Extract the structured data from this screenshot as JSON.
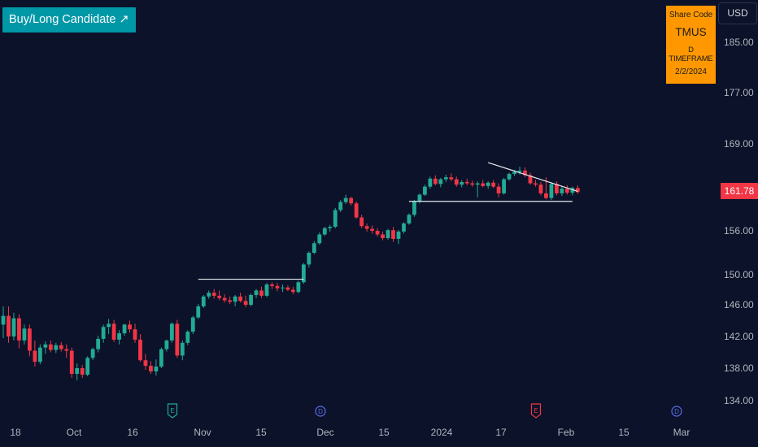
{
  "header": {
    "signal_label": "Buy/Long Candidate ↗",
    "currency": "USD"
  },
  "info_box": {
    "label": "Share Code",
    "ticker": "TMUS",
    "timeframe": "D TIMEFRAME",
    "date": "2/2/2024"
  },
  "last_price_label": "161.78",
  "colors": {
    "background": "#0b1229",
    "up": "#22ab94",
    "down": "#f23645",
    "accent_box": "#ff9800",
    "tag_box": "#0097a7",
    "last_price": "#f23645",
    "earnings_event": "#22ab94",
    "dividend_event": "#5b6be8",
    "earnings_event_2": "#f23645"
  },
  "chart_data": {
    "type": "candlestick",
    "yticks": [
      "185.00",
      "177.00",
      "169.00",
      "161.78",
      "156.00",
      "150.00",
      "146.00",
      "142.00",
      "138.00",
      "134.00"
    ],
    "xticks": [
      "18",
      "Oct",
      "16",
      "Nov",
      "15",
      "Dec",
      "15",
      "2024",
      "17",
      "Feb",
      "15",
      "Mar"
    ],
    "last_price": 161.78,
    "events": [
      {
        "letter": "E",
        "kind": "earnings",
        "color": "#22ab94"
      },
      {
        "letter": "D",
        "kind": "dividend",
        "color": "#5b6be8"
      },
      {
        "letter": "E",
        "kind": "earnings",
        "color": "#f23645"
      },
      {
        "letter": "D",
        "kind": "dividend",
        "color": "#5b6be8"
      }
    ],
    "candles": [
      {
        "o": 143.5,
        "h": 145.8,
        "l": 141.8,
        "c": 144.6
      },
      {
        "o": 144.6,
        "h": 145.8,
        "l": 141.2,
        "c": 142.0
      },
      {
        "o": 142.0,
        "h": 145.0,
        "l": 141.5,
        "c": 144.3
      },
      {
        "o": 144.3,
        "h": 144.8,
        "l": 140.5,
        "c": 141.5
      },
      {
        "o": 141.5,
        "h": 143.5,
        "l": 141.0,
        "c": 143.0
      },
      {
        "o": 143.0,
        "h": 143.5,
        "l": 139.5,
        "c": 140.2
      },
      {
        "o": 140.2,
        "h": 141.5,
        "l": 138.2,
        "c": 138.8
      },
      {
        "o": 138.8,
        "h": 141.0,
        "l": 138.5,
        "c": 140.6
      },
      {
        "o": 140.6,
        "h": 141.4,
        "l": 139.8,
        "c": 141.0
      },
      {
        "o": 141.0,
        "h": 141.5,
        "l": 140.0,
        "c": 140.3
      },
      {
        "o": 140.3,
        "h": 141.2,
        "l": 139.9,
        "c": 140.9
      },
      {
        "o": 140.9,
        "h": 141.3,
        "l": 140.1,
        "c": 140.4
      },
      {
        "o": 140.4,
        "h": 141.0,
        "l": 139.3,
        "c": 140.2
      },
      {
        "o": 140.2,
        "h": 140.6,
        "l": 136.8,
        "c": 137.3
      },
      {
        "o": 137.3,
        "h": 138.6,
        "l": 136.5,
        "c": 138.0
      },
      {
        "o": 138.0,
        "h": 138.4,
        "l": 136.8,
        "c": 137.2
      },
      {
        "o": 137.2,
        "h": 139.5,
        "l": 137.0,
        "c": 139.3
      },
      {
        "o": 139.3,
        "h": 140.6,
        "l": 139.0,
        "c": 140.4
      },
      {
        "o": 140.4,
        "h": 142.1,
        "l": 140.0,
        "c": 141.7
      },
      {
        "o": 141.7,
        "h": 143.5,
        "l": 141.2,
        "c": 143.2
      },
      {
        "o": 143.2,
        "h": 144.2,
        "l": 142.3,
        "c": 143.6
      },
      {
        "o": 143.6,
        "h": 144.1,
        "l": 141.3,
        "c": 141.6
      },
      {
        "o": 141.6,
        "h": 142.8,
        "l": 141.0,
        "c": 142.4
      },
      {
        "o": 142.4,
        "h": 143.6,
        "l": 142.1,
        "c": 143.5
      },
      {
        "o": 143.5,
        "h": 144.0,
        "l": 142.5,
        "c": 142.9
      },
      {
        "o": 142.9,
        "h": 143.6,
        "l": 141.2,
        "c": 141.6
      },
      {
        "o": 141.6,
        "h": 142.3,
        "l": 138.8,
        "c": 139.0
      },
      {
        "o": 139.0,
        "h": 139.8,
        "l": 137.8,
        "c": 138.3
      },
      {
        "o": 138.3,
        "h": 138.9,
        "l": 137.3,
        "c": 137.6
      },
      {
        "o": 137.6,
        "h": 139.1,
        "l": 137.1,
        "c": 138.2
      },
      {
        "o": 138.2,
        "h": 140.6,
        "l": 138.0,
        "c": 140.4
      },
      {
        "o": 140.4,
        "h": 141.6,
        "l": 140.1,
        "c": 141.5
      },
      {
        "o": 141.5,
        "h": 143.8,
        "l": 141.2,
        "c": 143.6
      },
      {
        "o": 143.6,
        "h": 144.1,
        "l": 139.3,
        "c": 139.6
      },
      {
        "o": 139.6,
        "h": 141.5,
        "l": 139.0,
        "c": 141.2
      },
      {
        "o": 141.2,
        "h": 142.8,
        "l": 140.9,
        "c": 142.6
      },
      {
        "o": 142.6,
        "h": 144.6,
        "l": 142.3,
        "c": 144.4
      },
      {
        "o": 144.4,
        "h": 146.1,
        "l": 144.2,
        "c": 145.8
      },
      {
        "o": 145.8,
        "h": 147.3,
        "l": 145.6,
        "c": 147.1
      },
      {
        "o": 147.1,
        "h": 147.9,
        "l": 146.8,
        "c": 147.6
      },
      {
        "o": 147.6,
        "h": 148.1,
        "l": 146.8,
        "c": 147.2
      },
      {
        "o": 147.2,
        "h": 147.9,
        "l": 146.6,
        "c": 146.9
      },
      {
        "o": 146.9,
        "h": 147.4,
        "l": 146.3,
        "c": 146.6
      },
      {
        "o": 146.6,
        "h": 147.1,
        "l": 146.1,
        "c": 146.4
      },
      {
        "o": 146.4,
        "h": 147.3,
        "l": 145.8,
        "c": 147.1
      },
      {
        "o": 147.1,
        "h": 147.6,
        "l": 146.3,
        "c": 146.5
      },
      {
        "o": 146.5,
        "h": 147.2,
        "l": 145.7,
        "c": 146.0
      },
      {
        "o": 146.0,
        "h": 147.5,
        "l": 145.8,
        "c": 147.3
      },
      {
        "o": 147.3,
        "h": 148.1,
        "l": 146.9,
        "c": 147.9
      },
      {
        "o": 147.9,
        "h": 148.4,
        "l": 146.9,
        "c": 147.2
      },
      {
        "o": 147.2,
        "h": 148.9,
        "l": 147.0,
        "c": 148.7
      },
      {
        "o": 148.7,
        "h": 149.0,
        "l": 148.1,
        "c": 148.5
      },
      {
        "o": 148.5,
        "h": 148.9,
        "l": 147.8,
        "c": 148.2
      },
      {
        "o": 148.2,
        "h": 148.7,
        "l": 147.7,
        "c": 148.3
      },
      {
        "o": 148.3,
        "h": 148.6,
        "l": 147.8,
        "c": 148.0
      },
      {
        "o": 148.0,
        "h": 148.4,
        "l": 147.4,
        "c": 147.7
      },
      {
        "o": 147.7,
        "h": 149.2,
        "l": 147.5,
        "c": 149.0
      },
      {
        "o": 149.0,
        "h": 151.6,
        "l": 148.8,
        "c": 151.4
      },
      {
        "o": 151.4,
        "h": 153.2,
        "l": 151.0,
        "c": 153.0
      },
      {
        "o": 153.0,
        "h": 154.6,
        "l": 152.8,
        "c": 154.3
      },
      {
        "o": 154.3,
        "h": 155.8,
        "l": 154.1,
        "c": 155.5
      },
      {
        "o": 155.5,
        "h": 156.6,
        "l": 155.3,
        "c": 156.4
      },
      {
        "o": 156.4,
        "h": 156.9,
        "l": 155.9,
        "c": 156.6
      },
      {
        "o": 156.6,
        "h": 159.4,
        "l": 156.4,
        "c": 159.1
      },
      {
        "o": 159.1,
        "h": 160.6,
        "l": 158.8,
        "c": 160.3
      },
      {
        "o": 160.3,
        "h": 161.4,
        "l": 160.0,
        "c": 160.9
      },
      {
        "o": 160.9,
        "h": 161.1,
        "l": 159.8,
        "c": 160.1
      },
      {
        "o": 160.1,
        "h": 160.4,
        "l": 157.8,
        "c": 158.0
      },
      {
        "o": 158.0,
        "h": 158.4,
        "l": 156.4,
        "c": 156.7
      },
      {
        "o": 156.7,
        "h": 157.1,
        "l": 155.9,
        "c": 156.3
      },
      {
        "o": 156.3,
        "h": 156.8,
        "l": 155.6,
        "c": 156.0
      },
      {
        "o": 156.0,
        "h": 156.4,
        "l": 155.2,
        "c": 155.5
      },
      {
        "o": 155.5,
        "h": 155.9,
        "l": 154.7,
        "c": 155.0
      },
      {
        "o": 155.0,
        "h": 156.3,
        "l": 154.8,
        "c": 156.1
      },
      {
        "o": 156.1,
        "h": 156.6,
        "l": 154.5,
        "c": 154.9
      },
      {
        "o": 154.9,
        "h": 156.1,
        "l": 154.2,
        "c": 155.9
      },
      {
        "o": 155.9,
        "h": 157.3,
        "l": 155.6,
        "c": 157.1
      },
      {
        "o": 157.1,
        "h": 158.6,
        "l": 156.9,
        "c": 158.4
      },
      {
        "o": 158.4,
        "h": 160.6,
        "l": 158.1,
        "c": 160.4
      },
      {
        "o": 160.4,
        "h": 161.6,
        "l": 160.1,
        "c": 161.4
      },
      {
        "o": 161.4,
        "h": 162.9,
        "l": 161.2,
        "c": 162.6
      },
      {
        "o": 162.6,
        "h": 164.1,
        "l": 162.3,
        "c": 163.8
      },
      {
        "o": 163.8,
        "h": 164.3,
        "l": 162.8,
        "c": 163.0
      },
      {
        "o": 163.0,
        "h": 163.9,
        "l": 162.5,
        "c": 163.7
      },
      {
        "o": 163.7,
        "h": 164.4,
        "l": 163.3,
        "c": 164.0
      },
      {
        "o": 164.0,
        "h": 164.6,
        "l": 163.4,
        "c": 163.7
      },
      {
        "o": 163.7,
        "h": 164.1,
        "l": 162.6,
        "c": 162.9
      },
      {
        "o": 162.9,
        "h": 163.6,
        "l": 162.5,
        "c": 163.3
      },
      {
        "o": 163.3,
        "h": 163.8,
        "l": 162.8,
        "c": 163.1
      },
      {
        "o": 163.1,
        "h": 163.5,
        "l": 162.6,
        "c": 162.9
      },
      {
        "o": 162.9,
        "h": 163.4,
        "l": 161.0,
        "c": 163.1
      },
      {
        "o": 163.1,
        "h": 163.6,
        "l": 162.5,
        "c": 162.7
      },
      {
        "o": 162.7,
        "h": 163.4,
        "l": 162.3,
        "c": 163.2
      },
      {
        "o": 163.2,
        "h": 163.6,
        "l": 162.4,
        "c": 162.6
      },
      {
        "o": 162.6,
        "h": 163.1,
        "l": 161.0,
        "c": 161.6
      },
      {
        "o": 161.6,
        "h": 163.9,
        "l": 161.4,
        "c": 163.7
      },
      {
        "o": 163.7,
        "h": 164.7,
        "l": 163.5,
        "c": 164.5
      },
      {
        "o": 164.5,
        "h": 165.1,
        "l": 164.2,
        "c": 164.8
      },
      {
        "o": 164.8,
        "h": 165.6,
        "l": 164.4,
        "c": 165.0
      },
      {
        "o": 165.0,
        "h": 165.5,
        "l": 164.0,
        "c": 164.3
      },
      {
        "o": 164.3,
        "h": 164.7,
        "l": 162.9,
        "c": 163.1
      },
      {
        "o": 163.1,
        "h": 163.6,
        "l": 162.6,
        "c": 162.9
      },
      {
        "o": 162.9,
        "h": 163.3,
        "l": 161.3,
        "c": 161.6
      },
      {
        "o": 161.6,
        "h": 164.0,
        "l": 160.7,
        "c": 160.9
      },
      {
        "o": 160.9,
        "h": 163.3,
        "l": 160.6,
        "c": 163.0
      },
      {
        "o": 163.0,
        "h": 163.4,
        "l": 161.3,
        "c": 161.6
      },
      {
        "o": 161.6,
        "h": 162.6,
        "l": 161.2,
        "c": 162.3
      },
      {
        "o": 162.3,
        "h": 162.8,
        "l": 161.4,
        "c": 161.7
      },
      {
        "o": 161.7,
        "h": 162.6,
        "l": 161.3,
        "c": 162.4
      },
      {
        "o": 162.4,
        "h": 162.8,
        "l": 161.5,
        "c": 161.78
      }
    ],
    "trendlines": [
      {
        "name": "resistance-nov",
        "from": {
          "bar": 37,
          "price": 149.4
        },
        "to": {
          "bar": 57,
          "price": 149.4
        }
      },
      {
        "name": "support-jan",
        "from": {
          "bar": 77,
          "price": 160.4
        },
        "to": {
          "bar": 108,
          "price": 160.4
        }
      },
      {
        "name": "upper-descending",
        "from": {
          "bar": 92,
          "price": 166.2
        },
        "to": {
          "bar": 109,
          "price": 161.9
        }
      }
    ]
  }
}
